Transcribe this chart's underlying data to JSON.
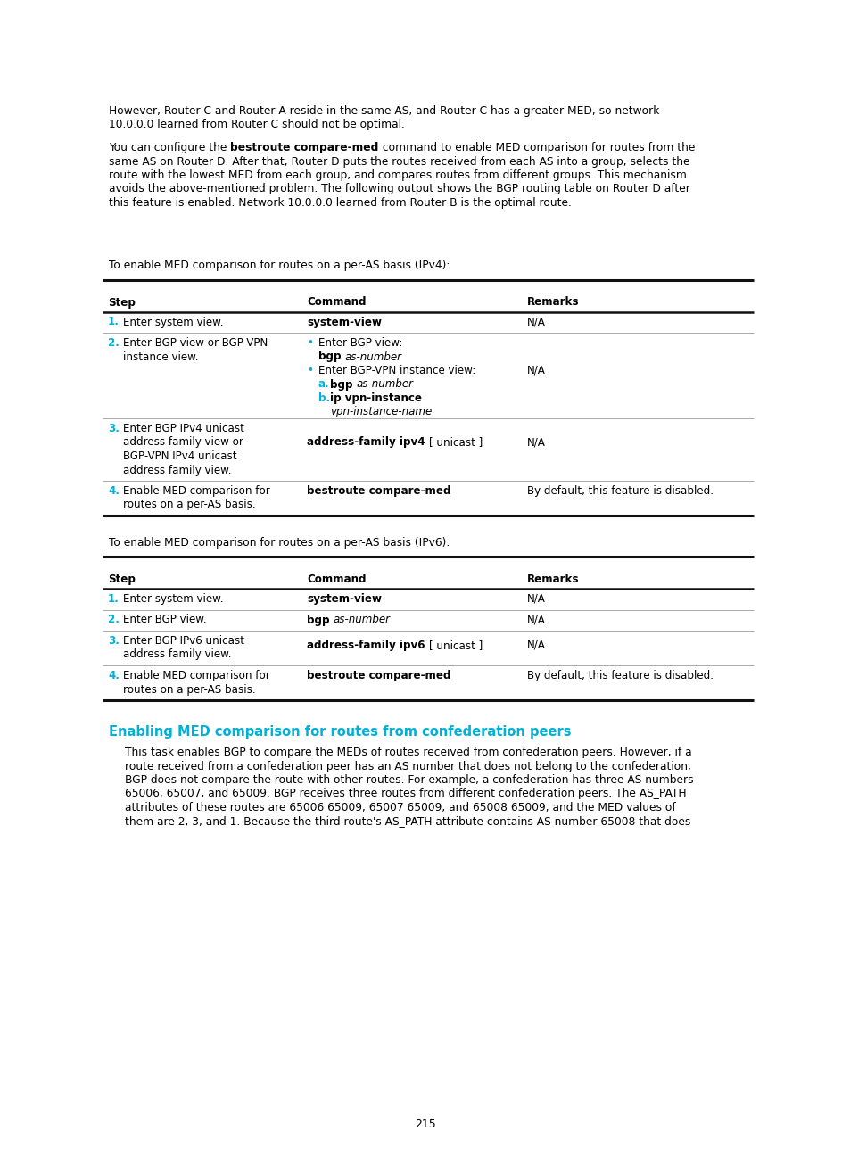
{
  "page_num": "215",
  "bg_color": "#ffffff",
  "text_color": "#000000",
  "cyan_color": "#00b0d8",
  "para1_lines": [
    "However, Router C and Router A reside in the same AS, and Router C has a greater MED, so network",
    "10.0.0.0 learned from Router C should not be optimal."
  ],
  "para2_line1_normal1": "You can configure the ",
  "para2_line1_bold": "bestroute compare-med",
  "para2_line1_normal2": " command to enable MED comparison for routes from the",
  "para2_rest": [
    "same AS on Router D. After that, Router D puts the routes received from each AS into a group, selects the",
    "route with the lowest MED from each group, and compares routes from different groups. This mechanism",
    "avoids the above-mentioned problem. The following output shows the BGP routing table on Router D after",
    "this feature is enabled. Network 10.0.0.0 learned from Router B is the optimal route."
  ],
  "table1_intro": "To enable MED comparison for routes on a per-AS basis (IPv4):",
  "table2_intro": "To enable MED comparison for routes on a per-AS basis (IPv6):",
  "section_heading": "Enabling MED comparison for routes from confederation peers",
  "section_para": [
    "This task enables BGP to compare the MEDs of routes received from confederation peers. However, if a",
    "route received from a confederation peer has an AS number that does not belong to the confederation,",
    "BGP does not compare the route with other routes. For example, a confederation has three AS numbers",
    "65006, 65007, and 65009. BGP receives three routes from different confederation peers. The AS_PATH",
    "attributes of these routes are 65006 65009, 65007 65009, and 65008 65009, and the MED values of",
    "them are 2, 3, and 1. Because the third route's AS_PATH attribute contains AS number 65008 that does"
  ]
}
